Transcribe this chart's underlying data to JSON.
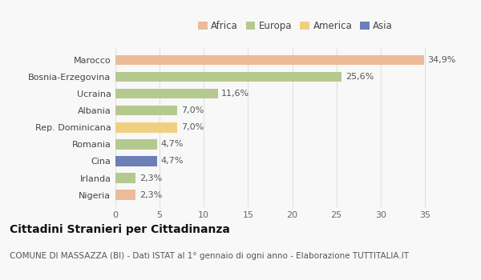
{
  "categories": [
    "Nigeria",
    "Irlanda",
    "Cina",
    "Romania",
    "Rep. Dominicana",
    "Albania",
    "Ucraina",
    "Bosnia-Erzegovina",
    "Marocco"
  ],
  "values": [
    2.3,
    2.3,
    4.7,
    4.7,
    7.0,
    7.0,
    11.6,
    25.6,
    34.9
  ],
  "colors": [
    "#EDBB99",
    "#B5C98E",
    "#6C7FB8",
    "#B5C98E",
    "#F0D080",
    "#B5C98E",
    "#B5C98E",
    "#B5C98E",
    "#EDBB99"
  ],
  "labels": [
    "2,3%",
    "2,3%",
    "4,7%",
    "4,7%",
    "7,0%",
    "7,0%",
    "11,6%",
    "25,6%",
    "34,9%"
  ],
  "legend_items": [
    {
      "label": "Africa",
      "color": "#EDBB99"
    },
    {
      "label": "Europa",
      "color": "#B5C98E"
    },
    {
      "label": "America",
      "color": "#F0D080"
    },
    {
      "label": "Asia",
      "color": "#6C7FB8"
    }
  ],
  "title": "Cittadini Stranieri per Cittadinanza",
  "subtitle": "COMUNE DI MASSAZZA (BI) - Dati ISTAT al 1° gennaio di ogni anno - Elaborazione TUTTITALIA.IT",
  "xlim": [
    0,
    37
  ],
  "xticks": [
    0,
    5,
    10,
    15,
    20,
    25,
    30,
    35
  ],
  "background_color": "#f8f8f8",
  "grid_color": "#e0e0e0",
  "bar_height": 0.6,
  "title_fontsize": 10,
  "subtitle_fontsize": 7.5,
  "label_fontsize": 8,
  "tick_fontsize": 8,
  "legend_fontsize": 8.5
}
